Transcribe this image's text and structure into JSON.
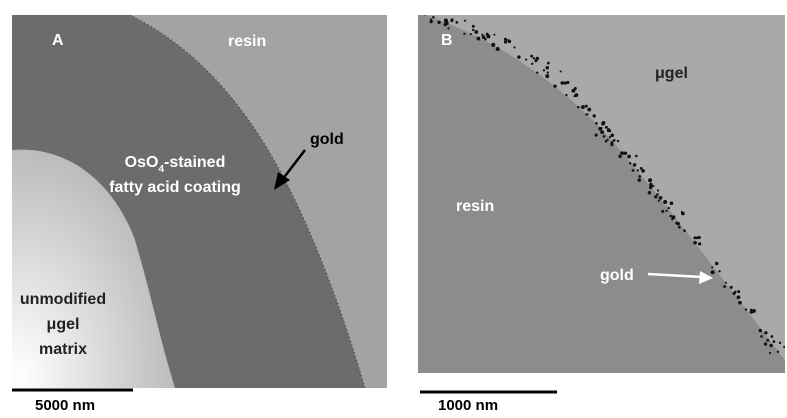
{
  "panel_a": {
    "letter": "A",
    "resin": "resin",
    "gold": "gold",
    "coating": {
      "pre": "OsO",
      "sub": "4",
      "post": "-stained",
      "line2": "fatty acid coating"
    },
    "matrix": {
      "line1": "unmodified",
      "line2": "μgel",
      "line3": "matrix"
    },
    "scale": "5000 nm"
  },
  "panel_b": {
    "letter": "B",
    "ugel": "μgel",
    "resin": "resin",
    "gold": "gold",
    "scale": "1000 nm"
  }
}
